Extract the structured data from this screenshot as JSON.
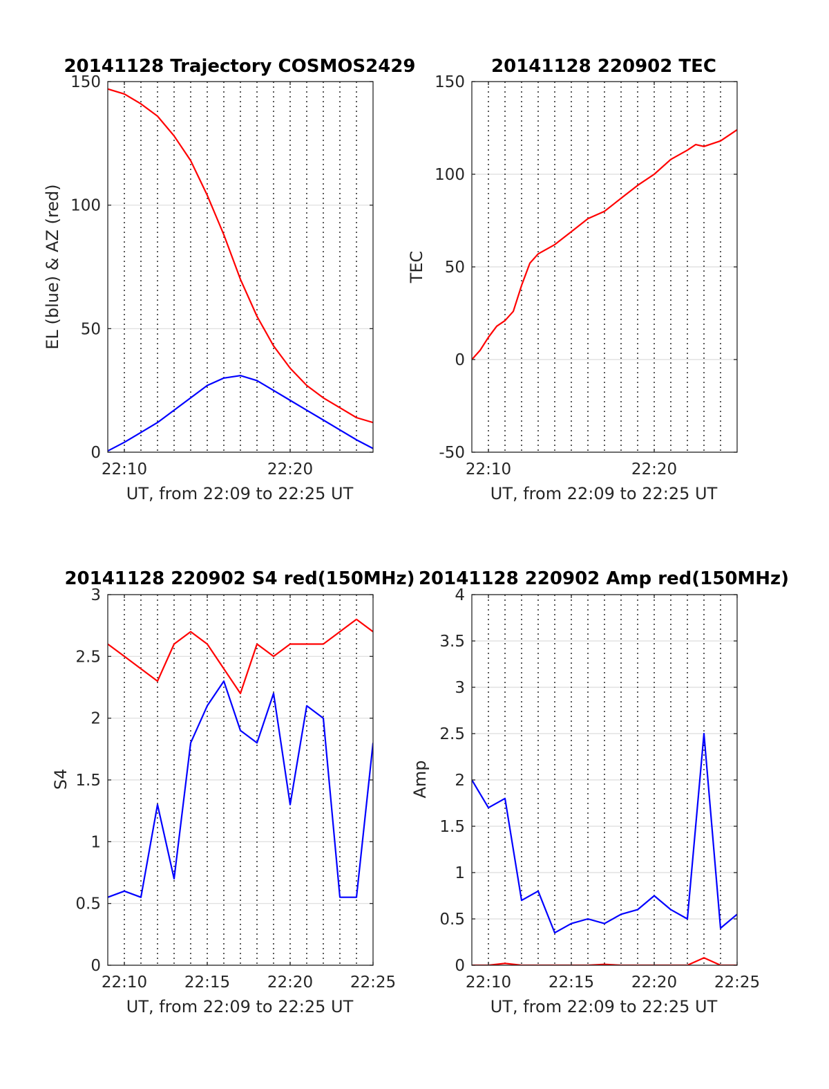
{
  "chart_data": [
    {
      "type": "line",
      "title": "20141128 Trajectory COSMOS2429",
      "xlabel": "UT, from 22:09 to 22:25 UT",
      "ylabel": "EL (blue) & AZ (red)",
      "xlim": [
        "22:09",
        "22:25"
      ],
      "ylim": [
        0,
        150
      ],
      "x_ticks": [
        "22:10",
        "22:20"
      ],
      "y_ticks": [
        0,
        50,
        100,
        150
      ],
      "grid": true,
      "series": [
        {
          "color": "#ff0000",
          "x": [
            "22:09",
            "22:10",
            "22:11",
            "22:12",
            "22:13",
            "22:14",
            "22:15",
            "22:16",
            "22:17",
            "22:18",
            "22:19",
            "22:20",
            "22:21",
            "22:22",
            "22:23",
            "22:24",
            "22:25"
          ],
          "values": [
            147,
            145,
            141,
            136,
            128,
            118,
            104,
            88,
            70,
            55,
            43,
            34,
            27,
            22,
            18,
            14,
            12
          ]
        },
        {
          "color": "#0000ff",
          "x": [
            "22:09",
            "22:10",
            "22:11",
            "22:12",
            "22:13",
            "22:14",
            "22:15",
            "22:16",
            "22:17",
            "22:18",
            "22:19",
            "22:20",
            "22:21",
            "22:22",
            "22:23",
            "22:24",
            "22:25"
          ],
          "values": [
            0.5,
            4,
            8,
            12,
            17,
            22,
            27,
            30,
            31,
            29,
            25,
            21,
            17,
            13,
            9,
            5,
            1.5
          ]
        }
      ]
    },
    {
      "type": "line",
      "title": "20141128 220902 TEC",
      "xlabel": "UT, from 22:09 to 22:25 UT",
      "ylabel": "TEC",
      "xlim": [
        "22:09",
        "22:25"
      ],
      "ylim": [
        -50,
        150
      ],
      "x_ticks": [
        "22:10",
        "22:20"
      ],
      "y_ticks": [
        -50,
        0,
        50,
        100,
        150
      ],
      "grid": true,
      "series": [
        {
          "color": "#ff0000",
          "x": [
            "22:09",
            "22:09:30",
            "22:10",
            "22:10:30",
            "22:11",
            "22:11:30",
            "22:12",
            "22:12:30",
            "22:13",
            "22:14",
            "22:15",
            "22:16",
            "22:17",
            "22:18",
            "22:19",
            "22:20",
            "22:21",
            "22:22",
            "22:22:30",
            "22:23",
            "22:24",
            "22:25"
          ],
          "values": [
            0,
            5,
            12,
            18,
            21,
            26,
            40,
            52,
            57,
            62,
            69,
            76,
            80,
            87,
            94,
            100,
            108,
            113,
            116,
            115,
            118,
            124
          ]
        }
      ]
    },
    {
      "type": "line",
      "title": "20141128 220902 S4 red(150MHz)",
      "xlabel": "UT, from 22:09 to 22:25 UT",
      "ylabel": "S4",
      "xlim": [
        "22:09",
        "22:25"
      ],
      "ylim": [
        0,
        3
      ],
      "x_ticks": [
        "22:10",
        "22:15",
        "22:20",
        "22:25"
      ],
      "y_ticks": [
        0,
        0.5,
        1,
        1.5,
        2,
        2.5,
        3
      ],
      "grid": true,
      "series": [
        {
          "color": "#ff0000",
          "x": [
            "22:09",
            "22:10",
            "22:11",
            "22:12",
            "22:13",
            "22:14",
            "22:15",
            "22:16",
            "22:17",
            "22:18",
            "22:19",
            "22:20",
            "22:21",
            "22:22",
            "22:23",
            "22:24",
            "22:25"
          ],
          "values": [
            2.6,
            2.5,
            2.4,
            2.3,
            2.6,
            2.7,
            2.6,
            2.4,
            2.2,
            2.6,
            2.5,
            2.6,
            2.6,
            2.6,
            2.7,
            2.8,
            2.7
          ]
        },
        {
          "color": "#0000ff",
          "x": [
            "22:09",
            "22:10",
            "22:11",
            "22:12",
            "22:13",
            "22:14",
            "22:15",
            "22:16",
            "22:17",
            "22:18",
            "22:19",
            "22:20",
            "22:21",
            "22:22",
            "22:23",
            "22:24",
            "22:25"
          ],
          "values": [
            0.55,
            0.6,
            0.55,
            1.3,
            0.7,
            1.8,
            2.1,
            2.3,
            1.9,
            1.8,
            2.2,
            1.3,
            2.1,
            2.0,
            0.55,
            0.55,
            1.8
          ]
        }
      ]
    },
    {
      "type": "line",
      "title": "20141128 220902 Amp red(150MHz)",
      "xlabel": "UT, from 22:09 to 22:25 UT",
      "ylabel": "Amp",
      "xlim": [
        "22:09",
        "22:25"
      ],
      "ylim": [
        0,
        4
      ],
      "x_ticks": [
        "22:10",
        "22:15",
        "22:20",
        "22:25"
      ],
      "y_ticks": [
        0,
        0.5,
        1,
        1.5,
        2,
        2.5,
        3,
        3.5,
        4
      ],
      "grid": true,
      "series": [
        {
          "color": "#0000ff",
          "x": [
            "22:09",
            "22:10",
            "22:11",
            "22:12",
            "22:13",
            "22:14",
            "22:15",
            "22:16",
            "22:17",
            "22:18",
            "22:19",
            "22:20",
            "22:21",
            "22:22",
            "22:23",
            "22:24",
            "22:25"
          ],
          "values": [
            2.0,
            1.7,
            1.8,
            0.7,
            0.8,
            0.35,
            0.45,
            0.5,
            0.45,
            0.55,
            0.6,
            0.75,
            0.6,
            0.5,
            2.5,
            0.4,
            0.55
          ]
        },
        {
          "color": "#ff0000",
          "x": [
            "22:09",
            "22:10",
            "22:11",
            "22:12",
            "22:13",
            "22:14",
            "22:15",
            "22:16",
            "22:17",
            "22:18",
            "22:19",
            "22:20",
            "22:21",
            "22:22",
            "22:23",
            "22:24",
            "22:25"
          ],
          "values": [
            0,
            0,
            0.02,
            0,
            0,
            0,
            0,
            0,
            0.01,
            0,
            0,
            0,
            0,
            0,
            0.08,
            0,
            0
          ]
        }
      ]
    }
  ]
}
